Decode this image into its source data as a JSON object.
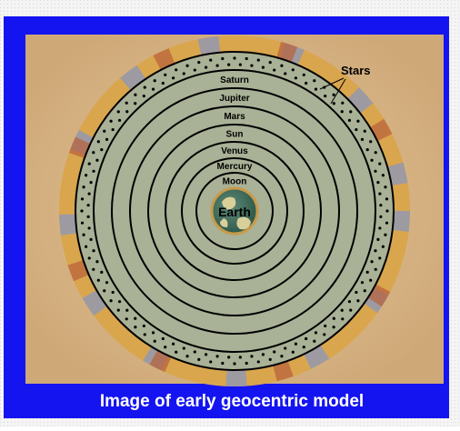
{
  "diagram": {
    "caption": "Image of early geocentric model",
    "labels": {
      "stars": "Stars",
      "earth": "Earth"
    },
    "spheres": [
      "Saturn",
      "Jupiter",
      "Mars",
      "Sun",
      "Venus",
      "Mercury",
      "Moon"
    ]
  }
}
